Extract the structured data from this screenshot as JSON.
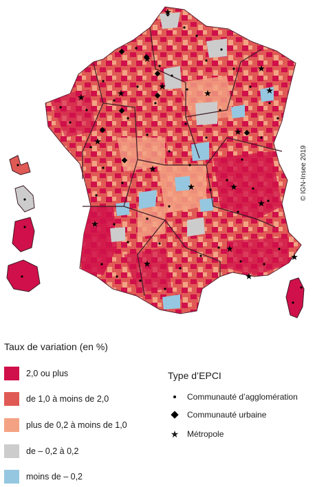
{
  "map": {
    "copyright": "© IGN-Insee 2019"
  },
  "legend": {
    "title": "Taux de variation (en %)",
    "classes": [
      {
        "label": "2,0 ou plus",
        "color": "#d0104a"
      },
      {
        "label": "de 1,0 à moins de 2,0",
        "color": "#e05a55"
      },
      {
        "label": "plus de 0,2 à moins de 1,0",
        "color": "#f3a384"
      },
      {
        "label": "de – 0,2  à  0,2",
        "color": "#cccccc"
      },
      {
        "label": "moins de – 0,2",
        "color": "#96c7e0"
      }
    ]
  },
  "epci": {
    "title": "Type d’EPCI",
    "types": [
      {
        "label": "Communauté d’agglomération",
        "icon": "dot-icon"
      },
      {
        "label": "Communauté urbaine",
        "icon": "diamond-icon"
      },
      {
        "label": "Métropole",
        "icon": "star-icon"
      }
    ]
  }
}
